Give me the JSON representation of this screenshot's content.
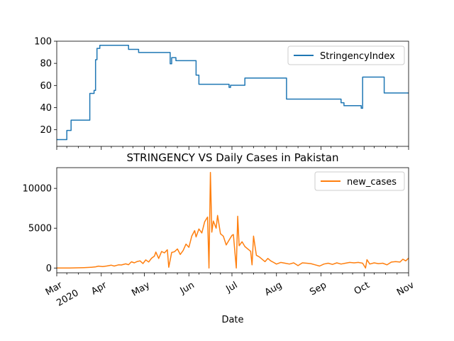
{
  "chart_data": [
    {
      "type": "line",
      "title": "",
      "xlabel": "",
      "ylabel": "",
      "x_range": [
        "2020-03-01",
        "2020-11-01"
      ],
      "ylim": [
        5,
        100
      ],
      "yticks": [
        20,
        40,
        60,
        80,
        100
      ],
      "legend": {
        "placement": "top-right",
        "entries": [
          "StringencyIndex"
        ]
      },
      "grid": false,
      "series": [
        {
          "name": "StringencyIndex",
          "color": "#1f77b4",
          "step": true,
          "points": [
            [
              "2020-03-01",
              11.1
            ],
            [
              "2020-03-08",
              19.4
            ],
            [
              "2020-03-11",
              28.7
            ],
            [
              "2020-03-24",
              52.8
            ],
            [
              "2020-03-27",
              55.6
            ],
            [
              "2020-03-28",
              83.3
            ],
            [
              "2020-03-29",
              93.5
            ],
            [
              "2020-03-31",
              96.3
            ],
            [
              "2020-04-20",
              92.6
            ],
            [
              "2020-04-27",
              89.8
            ],
            [
              "2020-05-19",
              79.6
            ],
            [
              "2020-05-20",
              85.2
            ],
            [
              "2020-05-23",
              82.4
            ],
            [
              "2020-06-06",
              69.4
            ],
            [
              "2020-06-08",
              61.1
            ],
            [
              "2020-06-29",
              58.3
            ],
            [
              "2020-06-30",
              60.2
            ],
            [
              "2020-07-10",
              66.7
            ],
            [
              "2020-08-08",
              47.7
            ],
            [
              "2020-09-15",
              44.4
            ],
            [
              "2020-09-17",
              41.7
            ],
            [
              "2020-09-29",
              39.4
            ],
            [
              "2020-09-30",
              67.6
            ],
            [
              "2020-10-15",
              53.2
            ],
            [
              "2020-11-01",
              53.2
            ]
          ]
        }
      ]
    },
    {
      "type": "line",
      "title": "STRINGENCY VS Daily Cases in Pakistan",
      "xlabel": "Date",
      "ylabel": "",
      "x_range": [
        "2020-03-01",
        "2020-11-01"
      ],
      "ylim": [
        -600,
        12600
      ],
      "yticks": [
        0,
        5000,
        10000
      ],
      "xticks": [
        {
          "date": "2020-03-01",
          "label": "Mar",
          "sublabel": "2020"
        },
        {
          "date": "2020-04-01",
          "label": "Apr"
        },
        {
          "date": "2020-05-01",
          "label": "May"
        },
        {
          "date": "2020-06-01",
          "label": "Jun"
        },
        {
          "date": "2020-07-01",
          "label": "Jul"
        },
        {
          "date": "2020-08-01",
          "label": "Aug"
        },
        {
          "date": "2020-09-01",
          "label": "Sep"
        },
        {
          "date": "2020-10-01",
          "label": "Oct"
        },
        {
          "date": "2020-11-01",
          "label": "Nov"
        }
      ],
      "legend": {
        "placement": "top-right",
        "entries": [
          "new_cases"
        ]
      },
      "grid": false,
      "series": [
        {
          "name": "new_cases",
          "color": "#ff7f0e",
          "points": [
            [
              "2020-03-01",
              0
            ],
            [
              "2020-03-10",
              2
            ],
            [
              "2020-03-15",
              20
            ],
            [
              "2020-03-20",
              50
            ],
            [
              "2020-03-25",
              100
            ],
            [
              "2020-03-28",
              150
            ],
            [
              "2020-03-30",
              240
            ],
            [
              "2020-04-02",
              180
            ],
            [
              "2020-04-05",
              260
            ],
            [
              "2020-04-08",
              350
            ],
            [
              "2020-04-10",
              250
            ],
            [
              "2020-04-13",
              400
            ],
            [
              "2020-04-15",
              380
            ],
            [
              "2020-04-18",
              520
            ],
            [
              "2020-04-20",
              420
            ],
            [
              "2020-04-22",
              780
            ],
            [
              "2020-04-24",
              650
            ],
            [
              "2020-04-26",
              820
            ],
            [
              "2020-04-28",
              900
            ],
            [
              "2020-04-30",
              560
            ],
            [
              "2020-05-02",
              1020
            ],
            [
              "2020-05-04",
              760
            ],
            [
              "2020-05-06",
              1230
            ],
            [
              "2020-05-08",
              1500
            ],
            [
              "2020-05-09",
              2000
            ],
            [
              "2020-05-11",
              1200
            ],
            [
              "2020-05-13",
              2080
            ],
            [
              "2020-05-15",
              1900
            ],
            [
              "2020-05-17",
              2300
            ],
            [
              "2020-05-18",
              100
            ],
            [
              "2020-05-20",
              1950
            ],
            [
              "2020-05-22",
              2050
            ],
            [
              "2020-05-24",
              2400
            ],
            [
              "2020-05-26",
              1700
            ],
            [
              "2020-05-28",
              2200
            ],
            [
              "2020-05-30",
              3000
            ],
            [
              "2020-06-01",
              2600
            ],
            [
              "2020-06-03",
              4000
            ],
            [
              "2020-06-05",
              4700
            ],
            [
              "2020-06-06",
              3900
            ],
            [
              "2020-06-08",
              4900
            ],
            [
              "2020-06-10",
              4400
            ],
            [
              "2020-06-12",
              5800
            ],
            [
              "2020-06-14",
              6400
            ],
            [
              "2020-06-15",
              0
            ],
            [
              "2020-06-16",
              12000
            ],
            [
              "2020-06-17",
              4500
            ],
            [
              "2020-06-18",
              5900
            ],
            [
              "2020-06-20",
              5000
            ],
            [
              "2020-06-21",
              6600
            ],
            [
              "2020-06-23",
              4300
            ],
            [
              "2020-06-25",
              4000
            ],
            [
              "2020-06-27",
              2900
            ],
            [
              "2020-06-29",
              3500
            ],
            [
              "2020-07-01",
              4100
            ],
            [
              "2020-07-02",
              4200
            ],
            [
              "2020-07-04",
              0
            ],
            [
              "2020-07-05",
              6500
            ],
            [
              "2020-07-06",
              2800
            ],
            [
              "2020-07-08",
              3300
            ],
            [
              "2020-07-10",
              2700
            ],
            [
              "2020-07-12",
              2400
            ],
            [
              "2020-07-14",
              2100
            ],
            [
              "2020-07-15",
              400
            ],
            [
              "2020-07-16",
              4000
            ],
            [
              "2020-07-18",
              1600
            ],
            [
              "2020-07-20",
              1400
            ],
            [
              "2020-07-22",
              1100
            ],
            [
              "2020-07-24",
              800
            ],
            [
              "2020-07-26",
              1200
            ],
            [
              "2020-07-28",
              900
            ],
            [
              "2020-07-30",
              700
            ],
            [
              "2020-08-01",
              500
            ],
            [
              "2020-08-04",
              700
            ],
            [
              "2020-08-07",
              600
            ],
            [
              "2020-08-10",
              500
            ],
            [
              "2020-08-13",
              650
            ],
            [
              "2020-08-16",
              300
            ],
            [
              "2020-08-19",
              650
            ],
            [
              "2020-08-22",
              600
            ],
            [
              "2020-08-25",
              550
            ],
            [
              "2020-08-28",
              400
            ],
            [
              "2020-08-31",
              250
            ],
            [
              "2020-09-03",
              500
            ],
            [
              "2020-09-06",
              600
            ],
            [
              "2020-09-09",
              450
            ],
            [
              "2020-09-12",
              650
            ],
            [
              "2020-09-15",
              500
            ],
            [
              "2020-09-18",
              600
            ],
            [
              "2020-09-21",
              700
            ],
            [
              "2020-09-24",
              650
            ],
            [
              "2020-09-27",
              700
            ],
            [
              "2020-09-30",
              600
            ],
            [
              "2020-10-02",
              0
            ],
            [
              "2020-10-03",
              1050
            ],
            [
              "2020-10-05",
              500
            ],
            [
              "2020-10-08",
              650
            ],
            [
              "2020-10-11",
              550
            ],
            [
              "2020-10-14",
              600
            ],
            [
              "2020-10-17",
              400
            ],
            [
              "2020-10-20",
              750
            ],
            [
              "2020-10-23",
              800
            ],
            [
              "2020-10-26",
              750
            ],
            [
              "2020-10-28",
              1100
            ],
            [
              "2020-10-30",
              900
            ],
            [
              "2020-11-01",
              1250
            ]
          ]
        }
      ]
    }
  ]
}
